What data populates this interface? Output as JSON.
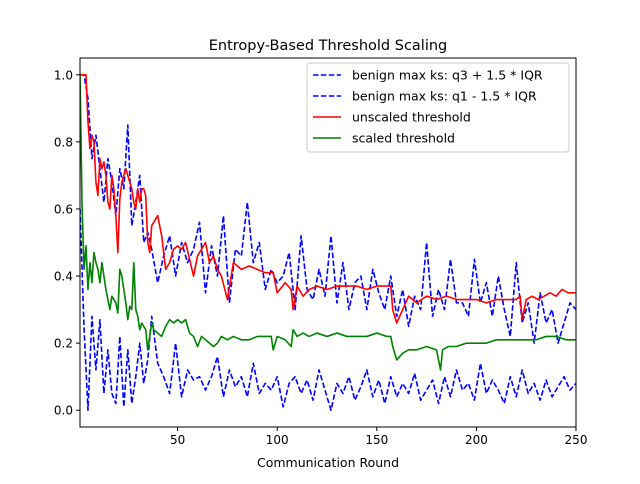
{
  "chart_data": {
    "type": "line",
    "title": "Entropy-Based Threshold Scaling",
    "xlabel": "Communication Round",
    "ylabel": "",
    "xlim": [
      1,
      250
    ],
    "ylim": [
      -0.05,
      1.05
    ],
    "xticks": [
      50,
      100,
      150,
      200,
      250
    ],
    "yticks": [
      0.0,
      0.2,
      0.4,
      0.6,
      0.8,
      1.0
    ],
    "legend_position": "top-right",
    "grid": false,
    "series": [
      {
        "name": "benign max ks: q3 + 1.5 * IQR",
        "color": "#0000ff",
        "dash": "dashed",
        "x": [
          1,
          3,
          5,
          7,
          9,
          11,
          13,
          15,
          17,
          19,
          21,
          23,
          25,
          27,
          29,
          31,
          33,
          35,
          37,
          40,
          43,
          46,
          49,
          52,
          55,
          58,
          61,
          64,
          67,
          70,
          73,
          76,
          79,
          82,
          85,
          88,
          91,
          94,
          97,
          100,
          103,
          106,
          109,
          112,
          115,
          118,
          121,
          124,
          127,
          130,
          133,
          136,
          139,
          142,
          145,
          148,
          151,
          154,
          157,
          160,
          163,
          166,
          169,
          172,
          175,
          178,
          181,
          184,
          187,
          190,
          193,
          196,
          199,
          202,
          205,
          208,
          211,
          214,
          217,
          220,
          223,
          226,
          229,
          232,
          235,
          238,
          241,
          244,
          247,
          250
        ],
        "y": [
          1.0,
          1.0,
          0.93,
          0.75,
          0.82,
          0.72,
          0.62,
          0.75,
          0.68,
          0.58,
          0.72,
          0.66,
          0.85,
          0.55,
          0.62,
          0.7,
          0.5,
          0.53,
          0.48,
          0.38,
          0.46,
          0.52,
          0.4,
          0.5,
          0.44,
          0.48,
          0.56,
          0.35,
          0.49,
          0.4,
          0.58,
          0.32,
          0.48,
          0.46,
          0.62,
          0.44,
          0.5,
          0.36,
          0.42,
          0.38,
          0.4,
          0.47,
          0.3,
          0.52,
          0.36,
          0.33,
          0.42,
          0.34,
          0.52,
          0.32,
          0.44,
          0.3,
          0.38,
          0.4,
          0.3,
          0.42,
          0.35,
          0.3,
          0.4,
          0.28,
          0.36,
          0.25,
          0.34,
          0.3,
          0.5,
          0.28,
          0.36,
          0.3,
          0.45,
          0.32,
          0.32,
          0.28,
          0.45,
          0.32,
          0.38,
          0.28,
          0.4,
          0.3,
          0.22,
          0.44,
          0.26,
          0.32,
          0.2,
          0.35,
          0.26,
          0.3,
          0.2,
          0.26,
          0.32,
          0.3
        ]
      },
      {
        "name": "benign max ks: q1 - 1.5 * IQR",
        "color": "#0000ff",
        "dash": "dashed",
        "x": [
          1,
          3,
          5,
          7,
          9,
          11,
          13,
          15,
          17,
          19,
          21,
          23,
          25,
          27,
          29,
          31,
          33,
          35,
          37,
          40,
          43,
          46,
          49,
          52,
          55,
          58,
          61,
          64,
          67,
          70,
          73,
          76,
          79,
          82,
          85,
          88,
          91,
          94,
          97,
          100,
          103,
          106,
          109,
          112,
          115,
          118,
          121,
          124,
          127,
          130,
          133,
          136,
          139,
          142,
          145,
          148,
          151,
          154,
          157,
          160,
          163,
          166,
          169,
          172,
          175,
          178,
          181,
          184,
          187,
          190,
          193,
          196,
          199,
          202,
          205,
          208,
          211,
          214,
          217,
          220,
          223,
          226,
          229,
          232,
          235,
          238,
          241,
          244,
          247,
          250
        ],
        "y": [
          0.6,
          0.25,
          0.0,
          0.28,
          0.12,
          0.27,
          0.05,
          0.18,
          0.05,
          0.02,
          0.22,
          0.01,
          0.18,
          0.02,
          0.1,
          0.2,
          0.08,
          0.15,
          0.28,
          0.14,
          0.1,
          0.05,
          0.2,
          0.04,
          0.12,
          0.09,
          0.1,
          0.06,
          0.1,
          0.16,
          0.04,
          0.12,
          0.07,
          0.1,
          0.04,
          0.14,
          0.05,
          0.08,
          0.06,
          0.1,
          0.01,
          0.08,
          0.1,
          0.05,
          0.09,
          0.03,
          0.12,
          0.06,
          0.0,
          0.08,
          0.05,
          0.1,
          0.03,
          0.07,
          0.12,
          0.04,
          0.09,
          0.02,
          0.1,
          0.04,
          0.08,
          0.05,
          0.11,
          0.03,
          0.06,
          0.09,
          0.02,
          0.1,
          0.04,
          0.12,
          0.06,
          0.08,
          0.03,
          0.14,
          0.05,
          0.09,
          0.06,
          0.02,
          0.1,
          0.04,
          0.12,
          0.05,
          0.08,
          0.03,
          0.09,
          0.04,
          0.07,
          0.1,
          0.06,
          0.08
        ]
      },
      {
        "name": "unscaled threshold",
        "color": "#ff0000",
        "dash": "solid",
        "x": [
          1,
          2,
          3,
          4,
          5,
          6,
          7,
          8,
          9,
          10,
          11,
          12,
          13,
          14,
          15,
          16,
          17,
          18,
          19,
          20,
          21,
          22,
          23,
          24,
          25,
          26,
          27,
          28,
          29,
          30,
          31,
          32,
          33,
          34,
          35,
          36,
          37,
          38,
          40,
          42,
          44,
          46,
          48,
          50,
          52,
          54,
          56,
          58,
          60,
          62,
          64,
          66,
          68,
          70,
          72,
          75,
          78,
          82,
          86,
          90,
          94,
          97,
          98,
          100,
          104,
          107,
          108,
          110,
          113,
          116,
          120,
          125,
          130,
          135,
          140,
          145,
          150,
          155,
          157,
          158,
          160,
          163,
          166,
          170,
          175,
          180,
          185,
          190,
          195,
          200,
          205,
          210,
          215,
          220,
          222,
          223,
          225,
          228,
          231,
          234,
          237,
          240,
          243,
          246,
          250
        ],
        "y": [
          1.0,
          1.0,
          1.0,
          1.0,
          0.86,
          0.78,
          0.82,
          0.8,
          0.68,
          0.64,
          0.75,
          0.72,
          0.74,
          0.7,
          0.62,
          0.6,
          0.7,
          0.66,
          0.58,
          0.47,
          0.63,
          0.68,
          0.7,
          0.72,
          0.7,
          0.68,
          0.66,
          0.62,
          0.6,
          0.66,
          0.62,
          0.66,
          0.66,
          0.64,
          0.5,
          0.47,
          0.55,
          0.56,
          0.58,
          0.52,
          0.42,
          0.44,
          0.48,
          0.49,
          0.48,
          0.5,
          0.45,
          0.4,
          0.46,
          0.48,
          0.5,
          0.44,
          0.46,
          0.42,
          0.4,
          0.33,
          0.44,
          0.42,
          0.43,
          0.42,
          0.41,
          0.41,
          0.41,
          0.35,
          0.38,
          0.36,
          0.3,
          0.37,
          0.34,
          0.36,
          0.37,
          0.36,
          0.37,
          0.37,
          0.37,
          0.36,
          0.37,
          0.37,
          0.37,
          0.3,
          0.26,
          0.3,
          0.34,
          0.32,
          0.34,
          0.33,
          0.34,
          0.33,
          0.33,
          0.33,
          0.32,
          0.33,
          0.33,
          0.33,
          0.34,
          0.27,
          0.33,
          0.34,
          0.33,
          0.34,
          0.35,
          0.34,
          0.36,
          0.35,
          0.35
        ]
      },
      {
        "name": "scaled threshold",
        "color": "#008000",
        "dash": "solid",
        "x": [
          1,
          2,
          3,
          4,
          5,
          6,
          7,
          8,
          9,
          10,
          11,
          12,
          13,
          14,
          15,
          16,
          17,
          18,
          19,
          20,
          21,
          22,
          23,
          24,
          25,
          26,
          27,
          28,
          29,
          30,
          31,
          32,
          33,
          34,
          35,
          36,
          37,
          38,
          40,
          42,
          44,
          46,
          48,
          50,
          52,
          54,
          56,
          58,
          60,
          62,
          64,
          66,
          68,
          70,
          72,
          75,
          78,
          82,
          86,
          90,
          94,
          97,
          98,
          100,
          104,
          107,
          108,
          110,
          113,
          116,
          120,
          125,
          130,
          135,
          140,
          145,
          150,
          155,
          157,
          158,
          160,
          163,
          166,
          170,
          175,
          180,
          182,
          183,
          186,
          190,
          195,
          200,
          205,
          210,
          215,
          220,
          225,
          230,
          235,
          240,
          245,
          250
        ],
        "y": [
          1.0,
          0.62,
          0.42,
          0.49,
          0.36,
          0.44,
          0.38,
          0.47,
          0.44,
          0.42,
          0.38,
          0.44,
          0.4,
          0.36,
          0.33,
          0.3,
          0.34,
          0.33,
          0.32,
          0.29,
          0.42,
          0.4,
          0.36,
          0.32,
          0.27,
          0.31,
          0.3,
          0.44,
          0.3,
          0.28,
          0.24,
          0.26,
          0.25,
          0.24,
          0.18,
          0.22,
          0.26,
          0.24,
          0.23,
          0.22,
          0.25,
          0.27,
          0.26,
          0.27,
          0.26,
          0.27,
          0.23,
          0.22,
          0.19,
          0.22,
          0.21,
          0.2,
          0.19,
          0.2,
          0.22,
          0.21,
          0.22,
          0.21,
          0.21,
          0.22,
          0.22,
          0.22,
          0.18,
          0.22,
          0.21,
          0.19,
          0.24,
          0.22,
          0.23,
          0.22,
          0.23,
          0.22,
          0.23,
          0.22,
          0.22,
          0.22,
          0.23,
          0.22,
          0.22,
          0.19,
          0.15,
          0.17,
          0.18,
          0.18,
          0.19,
          0.18,
          0.12,
          0.18,
          0.19,
          0.19,
          0.2,
          0.2,
          0.2,
          0.21,
          0.21,
          0.21,
          0.21,
          0.21,
          0.22,
          0.22,
          0.21,
          0.21
        ]
      }
    ]
  }
}
